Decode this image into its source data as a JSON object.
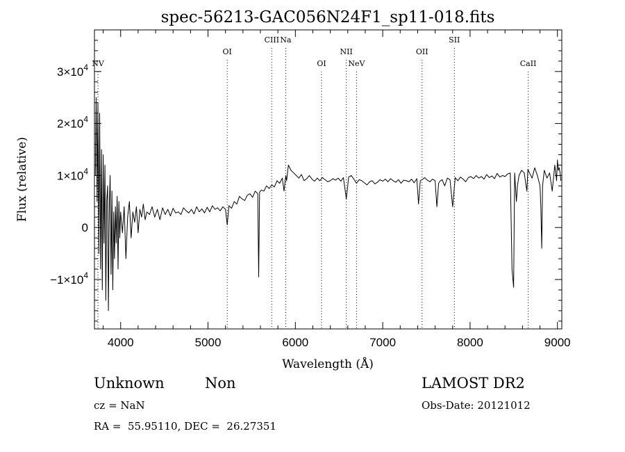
{
  "chart_data": {
    "type": "line",
    "title": "spec-56213-GAC056N24F1_sp11-018.fits",
    "xlabel": "Wavelength (Å)",
    "ylabel": "Flux (relative)",
    "xlim": [
      3700,
      9050
    ],
    "ylim": [
      -19500,
      38000
    ],
    "grid": false,
    "x_ticks": [
      {
        "value": 4000,
        "label": "4000"
      },
      {
        "value": 5000,
        "label": "5000"
      },
      {
        "value": 6000,
        "label": "6000"
      },
      {
        "value": 7000,
        "label": "7000"
      },
      {
        "value": 8000,
        "label": "8000"
      },
      {
        "value": 9000,
        "label": "9000"
      }
    ],
    "y_ticks": [
      {
        "value": -10000,
        "mant": "−1×10",
        "exp": "4"
      },
      {
        "value": 0,
        "mant": "0",
        "exp": ""
      },
      {
        "value": 10000,
        "mant": "1×10",
        "exp": "4"
      },
      {
        "value": 20000,
        "mant": "2×10",
        "exp": "4"
      },
      {
        "value": 30000,
        "mant": "3×10",
        "exp": "4"
      }
    ],
    "lines": [
      {
        "name": "NV",
        "x": 3740,
        "row": 0
      },
      {
        "name": "OI",
        "x": 5220,
        "row": 1
      },
      {
        "name": "CIII",
        "x": 5730,
        "row": 2
      },
      {
        "name": "Na",
        "x": 5890,
        "row": 2
      },
      {
        "name": "OI",
        "x": 6300,
        "row": 0
      },
      {
        "name": "NII",
        "x": 6583,
        "row": 1
      },
      {
        "name": "NeV",
        "x": 6700,
        "row": 0
      },
      {
        "name": "OII",
        "x": 7450,
        "row": 1
      },
      {
        "name": "SII",
        "x": 7820,
        "row": 2
      },
      {
        "name": "CaII",
        "x": 8665,
        "row": 0
      }
    ],
    "series": [
      {
        "x": [
          3710,
          3720,
          3730,
          3740,
          3750,
          3760,
          3770,
          3780,
          3790,
          3800,
          3810,
          3820,
          3830,
          3840,
          3850,
          3860,
          3870,
          3880,
          3890,
          3900,
          3910,
          3920,
          3930,
          3940,
          3950,
          3960,
          3970,
          3980,
          3990,
          4000,
          4020,
          4040,
          4060,
          4080,
          4100,
          4120,
          4140,
          4160,
          4180,
          4200,
          4220,
          4240,
          4260,
          4280,
          4300,
          4330,
          4360,
          4390,
          4420,
          4450,
          4480,
          4510,
          4540,
          4570,
          4600,
          4630,
          4660,
          4690,
          4720,
          4750,
          4780,
          4810,
          4840,
          4870,
          4900,
          4930,
          4960,
          4990,
          5020,
          5050,
          5080,
          5110,
          5140,
          5170,
          5200,
          5220,
          5240,
          5270,
          5300,
          5330,
          5360,
          5390,
          5420,
          5450,
          5480,
          5510,
          5540,
          5570,
          5580,
          5590,
          5610,
          5640,
          5670,
          5700,
          5730,
          5760,
          5790,
          5820,
          5850,
          5870,
          5890,
          5900,
          5920,
          5950,
          5980,
          6010,
          6040,
          6070,
          6100,
          6130,
          6160,
          6190,
          6220,
          6250,
          6280,
          6310,
          6340,
          6370,
          6400,
          6430,
          6460,
          6490,
          6520,
          6550,
          6583,
          6610,
          6640,
          6670,
          6700,
          6730,
          6760,
          6790,
          6820,
          6850,
          6880,
          6910,
          6940,
          6970,
          7000,
          7030,
          7060,
          7090,
          7120,
          7150,
          7180,
          7210,
          7240,
          7270,
          7300,
          7330,
          7360,
          7390,
          7410,
          7430,
          7450,
          7480,
          7510,
          7540,
          7570,
          7600,
          7620,
          7640,
          7660,
          7680,
          7710,
          7740,
          7770,
          7800,
          7830,
          7860,
          7890,
          7920,
          7950,
          7980,
          8010,
          8040,
          8070,
          8100,
          8130,
          8160,
          8190,
          8220,
          8250,
          8280,
          8310,
          8340,
          8370,
          8400,
          8430,
          8460,
          8480,
          8498,
          8510,
          8530,
          8542,
          8560,
          8590,
          8620,
          8650,
          8662,
          8680,
          8710,
          8740,
          8770,
          8800,
          8810,
          8820,
          8830,
          8850,
          8880,
          8910,
          8940,
          8970,
          8990,
          9000,
          9010,
          9020,
          9030,
          9040
        ],
        "y": [
          10000,
          25000,
          5000,
          24000,
          -5000,
          22000,
          -8000,
          15000,
          -12000,
          14000,
          -3000,
          12000,
          -14000,
          5000,
          8000,
          -16000,
          4000,
          10000,
          -9000,
          7000,
          -12000,
          3000,
          -6000,
          4000,
          -3000,
          6000,
          -8000,
          5000,
          -2000,
          3000,
          -1000,
          4000,
          -6000,
          2000,
          5000,
          -2000,
          3000,
          1000,
          4000,
          -1000,
          3500,
          2000,
          4500,
          1500,
          3000,
          2500,
          4000,
          2000,
          3500,
          1500,
          3800,
          2500,
          3500,
          2200,
          3700,
          2800,
          3000,
          2500,
          3800,
          3200,
          2800,
          3500,
          2600,
          4000,
          3000,
          3600,
          2800,
          3900,
          3000,
          4200,
          3500,
          3800,
          3200,
          4000,
          3500,
          500,
          4200,
          3700,
          5000,
          4500,
          6000,
          5500,
          5200,
          6200,
          6500,
          5800,
          7000,
          6500,
          -9500,
          6800,
          7200,
          7000,
          8000,
          7500,
          8200,
          7800,
          9000,
          8500,
          9500,
          7000,
          10000,
          9000,
          12000,
          11000,
          10500,
          10000,
          9500,
          10200,
          9000,
          9400,
          10000,
          9300,
          8900,
          9500,
          9000,
          9600,
          9200,
          8800,
          9000,
          9400,
          9100,
          9500,
          8900,
          9600,
          5500,
          9700,
          10000,
          9300,
          8500,
          9200,
          9000,
          8600,
          8200,
          8800,
          9000,
          8400,
          8700,
          9200,
          8900,
          9300,
          8800,
          9400,
          9000,
          8700,
          9200,
          8500,
          9100,
          9000,
          8800,
          9300,
          8600,
          9400,
          4500,
          9000,
          9200,
          9600,
          9100,
          8800,
          9300,
          9000,
          4000,
          8500,
          9000,
          9200,
          8000,
          9500,
          9200,
          4000,
          9600,
          9000,
          9700,
          9300,
          8800,
          9600,
          9800,
          9400,
          10000,
          9500,
          9800,
          9300,
          10200,
          9600,
          9900,
          9400,
          10400,
          9700,
          10000,
          9800,
          10300,
          10500,
          -8000,
          -11500,
          10500,
          5000,
          8000,
          10000,
          11000,
          10500,
          7000,
          11200,
          10500,
          9500,
          11500,
          10000,
          8000,
          4000,
          -4000,
          8000,
          11000,
          9500,
          10500,
          7000,
          12000,
          9000,
          13000,
          11000,
          11500,
          10500,
          9000
        ]
      }
    ]
  },
  "footer": {
    "object_class": "Unknown",
    "object_subclass": "Non",
    "survey": "LAMOST DR2",
    "cz": "cz = NaN",
    "obs_date": "Obs-Date: 20121012",
    "coords": "RA =  55.95110, DEC =  26.27351"
  }
}
